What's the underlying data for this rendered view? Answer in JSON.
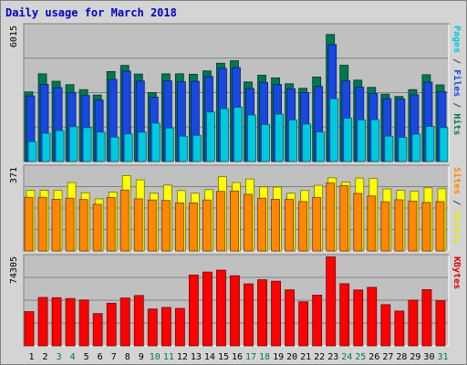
{
  "chart_data": {
    "type": "bar",
    "title": "Daily usage for March 2018",
    "days": [
      "1",
      "2",
      "3",
      "4",
      "5",
      "6",
      "7",
      "8",
      "9",
      "10",
      "11",
      "12",
      "13",
      "14",
      "15",
      "16",
      "17",
      "18",
      "19",
      "20",
      "21",
      "22",
      "23",
      "24",
      "25",
      "26",
      "27",
      "28",
      "29",
      "30",
      "31"
    ],
    "weekend_days": [
      "3",
      "4",
      "10",
      "11",
      "17",
      "18",
      "24",
      "25",
      "31"
    ],
    "panels": [
      {
        "id": "top",
        "ymax": 6015,
        "ymax_label": "6015",
        "side_labels": [
          {
            "text": "Pages",
            "color": "#00c8e0"
          },
          {
            "text": " / ",
            "color": "#404040"
          },
          {
            "text": "Files",
            "color": "#1848e0"
          },
          {
            "text": " / ",
            "color": "#404040"
          },
          {
            "text": "Hits",
            "color": "#007850"
          }
        ],
        "series": [
          {
            "name": "Hits",
            "color": "#007850",
            "values": [
              3080,
              3880,
              3550,
              3400,
              3180,
              2940,
              3980,
              4250,
              3870,
              3050,
              3880,
              3880,
              3860,
              4010,
              4350,
              4460,
              3520,
              3820,
              3700,
              3440,
              3240,
              3740,
              5620,
              4260,
              3600,
              3280,
              2980,
              2880,
              3180,
              3840,
              3390
            ]
          },
          {
            "name": "Files",
            "color": "#1848e0",
            "values": [
              2900,
              3410,
              3270,
              3060,
              2920,
              2720,
              3630,
              4000,
              3560,
              2850,
              3570,
              3530,
              3550,
              3760,
              4120,
              4150,
              3230,
              3500,
              3410,
              3220,
              3050,
              3320,
              5170,
              3570,
              3290,
              3010,
              2780,
              2770,
              2950,
              3510,
              3090
            ]
          },
          {
            "name": "Pages",
            "color": "#00c8e0",
            "values": [
              880,
              1250,
              1370,
              1540,
              1500,
              1300,
              1080,
              1220,
              1300,
              1700,
              1480,
              1120,
              1160,
              2190,
              2340,
              2400,
              2060,
              1640,
              2100,
              1840,
              1660,
              1310,
              2780,
              1920,
              1840,
              1850,
              1120,
              1070,
              1210,
              1550,
              1500
            ]
          }
        ]
      },
      {
        "id": "middle",
        "ymax": 371,
        "ymax_label": "371",
        "side_labels": [
          {
            "text": "Sites",
            "color": "#ff8800"
          },
          {
            "text": " / ",
            "color": "#404040"
          },
          {
            "text": "Visits",
            "color": "#e8e800"
          }
        ],
        "series": [
          {
            "name": "Visits",
            "color": "#ffff00",
            "values": [
              268,
              268,
              268,
              302,
              257,
              230,
              260,
              333,
              314,
              255,
              291,
              267,
              255,
              271,
              328,
              302,
              318,
              283,
              282,
              255,
              267,
              290,
              323,
              304,
              322,
              320,
              274,
              268,
              264,
              279,
              275
            ]
          },
          {
            "name": "Sites",
            "color": "#ff8800",
            "values": [
              237,
              237,
              228,
              233,
              227,
              206,
              236,
              269,
              230,
              225,
              223,
              212,
              212,
              225,
              263,
              265,
              250,
              233,
              228,
              228,
              218,
              236,
              300,
              288,
              254,
              243,
              217,
              226,
              220,
              214,
              218
            ]
          }
        ]
      },
      {
        "id": "bottom",
        "ymax": 74305,
        "ymax_label": "74305",
        "side_labels": [
          {
            "text": "KBytes",
            "color": "#e00000"
          }
        ],
        "series": [
          {
            "name": "KBytes",
            "color": "#ff0000",
            "values": [
              28400,
              40200,
              40000,
              39300,
              38100,
              26800,
              35400,
              39700,
              41800,
              30600,
              31900,
              31100,
              58800,
              61300,
              62900,
              58200,
              51500,
              54900,
              53700,
              46500,
              36600,
              42100,
              73900,
              51600,
              46400,
              48600,
              34200,
              28900,
              38000,
              46700,
              37400
            ]
          }
        ]
      }
    ]
  }
}
